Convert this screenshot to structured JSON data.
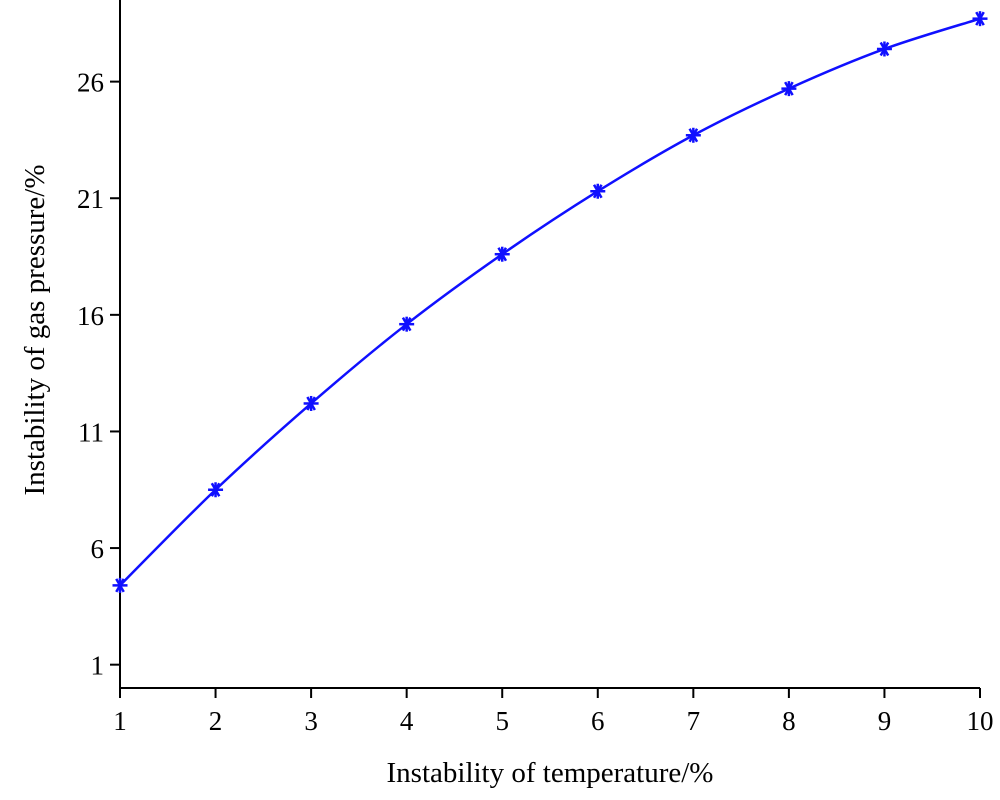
{
  "chart_data": {
    "type": "line",
    "title": "",
    "xlabel": "Instability of temperature/%",
    "ylabel": "Instability of gas pressure/%",
    "xlim": [
      1,
      10
    ],
    "ylim": [
      0,
      29.5
    ],
    "xticks": [
      "1",
      "2",
      "3",
      "4",
      "5",
      "6",
      "7",
      "8",
      "9",
      "10"
    ],
    "yticks": [
      "1",
      "6",
      "11",
      "16",
      "21",
      "26"
    ],
    "grid": false,
    "legend": "none",
    "series": [
      {
        "color": "#1010ff",
        "marker": "asterisk",
        "x": [
          1,
          2,
          3,
          4,
          5,
          6,
          7,
          8,
          9,
          10
        ],
        "y": [
          4.4,
          8.5,
          12.2,
          15.6,
          18.6,
          21.3,
          23.7,
          25.7,
          27.4,
          28.7
        ]
      }
    ]
  }
}
